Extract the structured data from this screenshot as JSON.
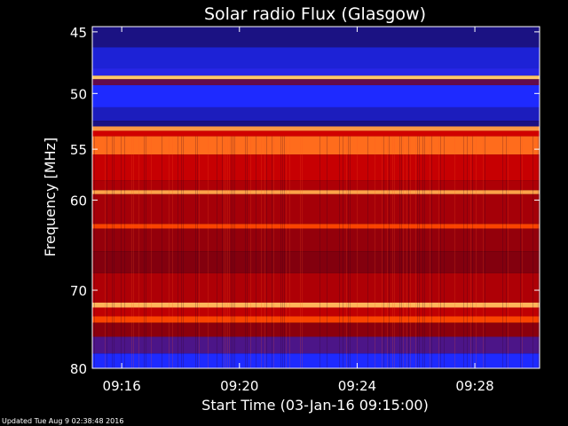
{
  "chart_data": {
    "type": "heatmap",
    "title": "Solar radio Flux (Glasgow)",
    "xlabel": "Start Time (03-Jan-16 09:15:00)",
    "ylabel": "Frequency [MHz]",
    "x_ticks": [
      "09:16",
      "09:20",
      "09:24",
      "09:28"
    ],
    "x_tick_minutes": [
      1,
      5,
      9,
      13
    ],
    "xlim_minutes": [
      0.0,
      15.2
    ],
    "y_ticks": [
      45,
      50,
      55,
      60,
      70,
      80
    ],
    "ylim": [
      44.6,
      80.0
    ],
    "y_scale": "log",
    "grid": false,
    "colormap": [
      "#1a0a5a",
      "#1e2aff",
      "#7a0010",
      "#d00000",
      "#ff4a00",
      "#ffd070"
    ],
    "bands": [
      {
        "f0": 44.6,
        "f1": 46.2,
        "level": 0.05
      },
      {
        "f0": 46.2,
        "f1": 47.9,
        "level": 0.15
      },
      {
        "f0": 47.9,
        "f1": 48.5,
        "level": 0.22
      },
      {
        "f0": 48.5,
        "f1": 48.8,
        "level": 0.99
      },
      {
        "f0": 48.8,
        "f1": 49.3,
        "level": 0.35
      },
      {
        "f0": 49.3,
        "f1": 51.2,
        "level": 0.2
      },
      {
        "f0": 51.2,
        "f1": 52.4,
        "level": 0.12
      },
      {
        "f0": 52.4,
        "f1": 52.9,
        "level": 0.05
      },
      {
        "f0": 52.9,
        "f1": 53.3,
        "level": 0.92
      },
      {
        "f0": 53.3,
        "f1": 53.8,
        "level": 0.6
      },
      {
        "f0": 53.8,
        "f1": 55.5,
        "level": 0.85
      },
      {
        "f0": 55.5,
        "f1": 58.0,
        "level": 0.58
      },
      {
        "f0": 58.0,
        "f1": 59.0,
        "level": 0.52
      },
      {
        "f0": 59.0,
        "f1": 59.4,
        "level": 0.93
      },
      {
        "f0": 59.4,
        "f1": 62.5,
        "level": 0.5
      },
      {
        "f0": 62.5,
        "f1": 63.0,
        "level": 0.78
      },
      {
        "f0": 63.0,
        "f1": 65.5,
        "level": 0.46
      },
      {
        "f0": 65.5,
        "f1": 68.0,
        "level": 0.42
      },
      {
        "f0": 68.0,
        "f1": 71.5,
        "level": 0.52
      },
      {
        "f0": 71.5,
        "f1": 72.1,
        "level": 0.96
      },
      {
        "f0": 72.1,
        "f1": 73.2,
        "level": 0.56
      },
      {
        "f0": 73.2,
        "f1": 74.0,
        "level": 0.78
      },
      {
        "f0": 74.0,
        "f1": 75.8,
        "level": 0.44
      },
      {
        "f0": 75.8,
        "f1": 78.0,
        "level": 0.3
      },
      {
        "f0": 78.0,
        "f1": 80.0,
        "level": 0.2
      }
    ]
  },
  "footer": {
    "updated": "Updated Tue Aug  9 02:38:48 2016"
  }
}
